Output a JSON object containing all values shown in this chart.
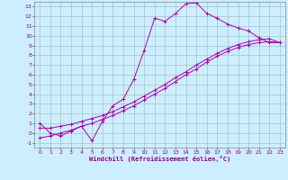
{
  "xlabel": "Windchill (Refroidissement éolien,°C)",
  "bg_color": "#cceeff",
  "line_color": "#aa00aa",
  "grid_color": "#99bbbb",
  "xlim": [
    -0.5,
    23.5
  ],
  "ylim": [
    -1.5,
    13.5
  ],
  "xticks": [
    0,
    1,
    2,
    3,
    4,
    5,
    6,
    7,
    8,
    9,
    10,
    11,
    12,
    13,
    14,
    15,
    16,
    17,
    18,
    19,
    20,
    21,
    22,
    23
  ],
  "yticks": [
    -1,
    0,
    1,
    2,
    3,
    4,
    5,
    6,
    7,
    8,
    9,
    10,
    11,
    12,
    13
  ],
  "curve1_x": [
    0,
    1,
    2,
    3,
    4,
    5,
    6,
    7,
    8,
    9,
    10,
    11,
    12,
    13,
    14,
    15,
    16,
    17,
    18,
    19,
    20,
    21,
    22,
    23
  ],
  "curve1_y": [
    1.0,
    0.0,
    -0.3,
    0.2,
    0.7,
    -0.8,
    1.2,
    2.8,
    3.5,
    5.5,
    8.5,
    11.8,
    11.5,
    12.3,
    13.3,
    13.4,
    12.3,
    11.8,
    11.2,
    10.8,
    10.5,
    9.8,
    9.3,
    9.3
  ],
  "curve2_x": [
    0,
    1,
    2,
    3,
    4,
    5,
    6,
    7,
    8,
    9,
    10,
    11,
    12,
    13,
    14,
    15,
    16,
    17,
    18,
    19,
    20,
    21,
    22,
    23
  ],
  "curve2_y": [
    0.5,
    0.5,
    0.7,
    0.9,
    1.2,
    1.5,
    1.8,
    2.2,
    2.7,
    3.2,
    3.8,
    4.4,
    5.0,
    5.7,
    6.3,
    7.0,
    7.6,
    8.2,
    8.7,
    9.1,
    9.4,
    9.6,
    9.7,
    9.3
  ],
  "curve3_x": [
    0,
    1,
    2,
    3,
    4,
    5,
    6,
    7,
    8,
    9,
    10,
    11,
    12,
    13,
    14,
    15,
    16,
    17,
    18,
    19,
    20,
    21,
    22,
    23
  ],
  "curve3_y": [
    -0.5,
    -0.3,
    0.0,
    0.3,
    0.7,
    1.0,
    1.4,
    1.8,
    2.3,
    2.8,
    3.4,
    4.0,
    4.6,
    5.3,
    6.0,
    6.6,
    7.3,
    7.9,
    8.4,
    8.8,
    9.1,
    9.3,
    9.4,
    9.3
  ]
}
